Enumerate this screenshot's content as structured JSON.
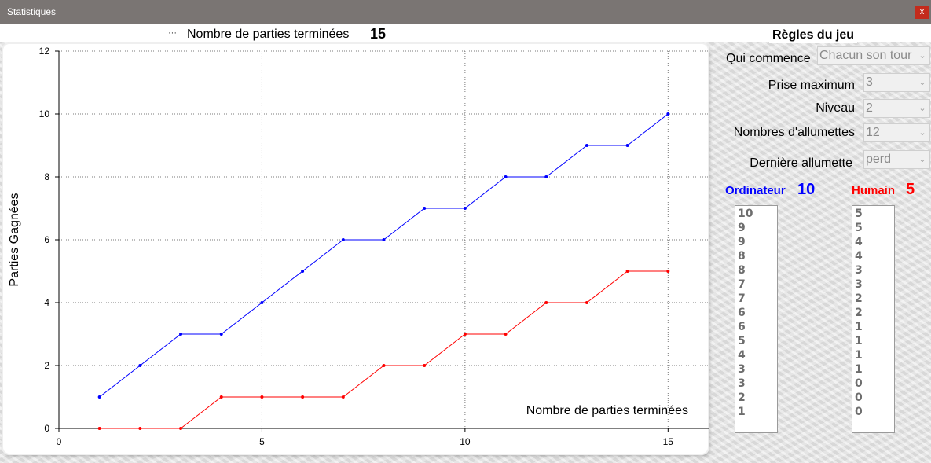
{
  "window": {
    "title": "Statistiques",
    "close_label": "x"
  },
  "header": {
    "legend_marker": "···",
    "games_label": "Nombre de parties terminées",
    "games_value": "15"
  },
  "rules": {
    "title": "Règles du jeu",
    "who_starts": {
      "label": "Qui commence",
      "value": "Chacun son tour"
    },
    "max_take": {
      "label": "Prise maximum",
      "value": "3"
    },
    "level": {
      "label": "Niveau",
      "value": "2"
    },
    "matches": {
      "label": "Nombres d'allumettes",
      "value": "12"
    },
    "last_match": {
      "label": "Dernière allumette",
      "value": "perd"
    }
  },
  "computer": {
    "label": "Ordinateur",
    "score": "10",
    "color": "#0000ff",
    "history": [
      "10",
      "9",
      "9",
      "8",
      "8",
      "7",
      "7",
      "6",
      "6",
      "5",
      "4",
      "3",
      "3",
      "2",
      "1"
    ]
  },
  "human": {
    "label": "Humain",
    "score": "5",
    "color": "#ff0000",
    "history": [
      "5",
      "5",
      "4",
      "4",
      "3",
      "3",
      "2",
      "2",
      "1",
      "1",
      "1",
      "1",
      "0",
      "0",
      "0"
    ]
  },
  "chart_data": {
    "type": "line",
    "title": "",
    "xlabel": "Nombre de parties terminées",
    "ylabel": "Parties Gagnées",
    "xlim": [
      0,
      16
    ],
    "ylim": [
      0,
      12
    ],
    "xticks": [
      0,
      5,
      10,
      15
    ],
    "yticks": [
      0,
      2,
      4,
      6,
      8,
      10,
      12
    ],
    "grid": true,
    "x": [
      1,
      2,
      3,
      4,
      5,
      6,
      7,
      8,
      9,
      10,
      11,
      12,
      13,
      14,
      15
    ],
    "series": [
      {
        "color": "#0000ff",
        "values": [
          1,
          2,
          3,
          3,
          4,
          5,
          6,
          6,
          7,
          7,
          8,
          8,
          9,
          9,
          10
        ]
      },
      {
        "color": "#ff0000",
        "values": [
          0,
          0,
          0,
          1,
          1,
          1,
          1,
          2,
          2,
          3,
          3,
          4,
          4,
          5,
          5
        ]
      }
    ]
  }
}
